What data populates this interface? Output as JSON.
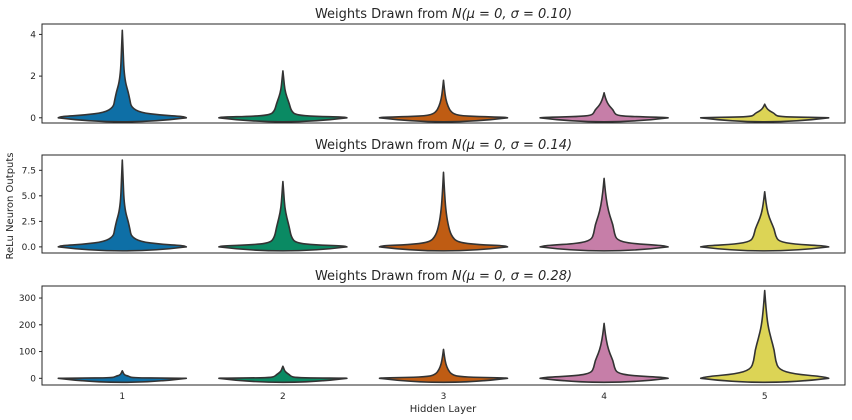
{
  "figure": {
    "ylabel": "ReLu Neuron Outputs",
    "xlabel": "Hidden Layer"
  },
  "chart_data": [
    {
      "type": "violin",
      "title_text": "Weights Drawn from ",
      "title_math": "N(μ = 0, σ = 0.10)",
      "categories": [
        "1",
        "2",
        "3",
        "4",
        "5"
      ],
      "ylim": [
        -0.25,
        4.5
      ],
      "yticks": [
        0,
        2,
        4
      ],
      "ytick_labels": [
        "0",
        "2",
        "4"
      ],
      "grid": false,
      "series": [
        {
          "category": "1",
          "max": 4.2,
          "color": "#0e6fa6"
        },
        {
          "category": "2",
          "max": 2.25,
          "color": "#0a8a63"
        },
        {
          "category": "3",
          "max": 1.8,
          "color": "#bf5c13"
        },
        {
          "category": "4",
          "max": 1.2,
          "color": "#c67ea8"
        },
        {
          "category": "5",
          "max": 0.65,
          "color": "#dcd455"
        }
      ]
    },
    {
      "type": "violin",
      "title_text": "Weights Drawn from ",
      "title_math": "N(μ = 0, σ = 0.14)",
      "categories": [
        "1",
        "2",
        "3",
        "4",
        "5"
      ],
      "ylim": [
        -0.6,
        9.0
      ],
      "yticks": [
        0,
        2.5,
        5.0,
        7.5
      ],
      "ytick_labels": [
        "0.0",
        "2.5",
        "5.0",
        "7.5"
      ],
      "grid": false,
      "series": [
        {
          "category": "1",
          "max": 8.5,
          "color": "#0e6fa6"
        },
        {
          "category": "2",
          "max": 6.4,
          "color": "#0a8a63"
        },
        {
          "category": "3",
          "max": 7.3,
          "color": "#bf5c13"
        },
        {
          "category": "4",
          "max": 6.7,
          "color": "#c67ea8"
        },
        {
          "category": "5",
          "max": 5.4,
          "color": "#dcd455"
        }
      ]
    },
    {
      "type": "violin",
      "title_text": "Weights Drawn from ",
      "title_math": "N(μ = 0, σ = 0.28)",
      "categories": [
        "1",
        "2",
        "3",
        "4",
        "5"
      ],
      "ylim": [
        -25,
        345
      ],
      "yticks": [
        0,
        100,
        200,
        300
      ],
      "ytick_labels": [
        "0",
        "100",
        "200",
        "300"
      ],
      "grid": false,
      "series": [
        {
          "category": "1",
          "max": 28,
          "color": "#0e6fa6"
        },
        {
          "category": "2",
          "max": 45,
          "color": "#0a8a63"
        },
        {
          "category": "3",
          "max": 108,
          "color": "#bf5c13"
        },
        {
          "category": "4",
          "max": 205,
          "color": "#c67ea8"
        },
        {
          "category": "5",
          "max": 328,
          "color": "#dcd455"
        }
      ]
    }
  ]
}
